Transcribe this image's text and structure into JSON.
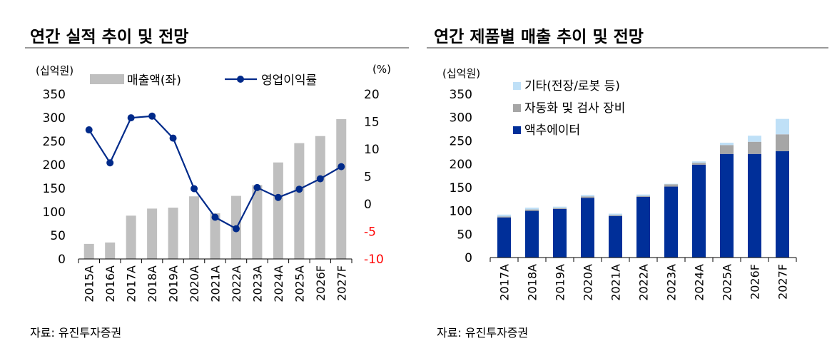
{
  "left": {
    "title": "연간 실적 추이 및 전망",
    "source": "자료: 유진투자증권",
    "unit_left": "(십억원)",
    "unit_right": "(%)",
    "legend_bar": "매출액(좌)",
    "legend_line": "영업이익률"
  },
  "right": {
    "title": "연간 제품별 매출 추이 및 전망",
    "source": "자료: 유진투자증권",
    "unit_left": "(십억원)",
    "legend": [
      "기타(전장/로봇 등)",
      "자동화 및 검사 장비",
      "액추에이터"
    ]
  },
  "colors": {
    "bar_gray": "#bfbfbf",
    "line_navy": "#002a8a",
    "actuator": "#002f99",
    "automation": "#a6a6a6",
    "other": "#bfe0f7",
    "negative_tick": "#ff0000"
  },
  "chart_data": [
    {
      "type": "bar+line",
      "title": "연간 실적 추이 및 전망",
      "categories": [
        "2015A",
        "2016A",
        "2017A",
        "2018A",
        "2019A",
        "2020A",
        "2021A",
        "2022A",
        "2023A",
        "2024A",
        "2025A",
        "2026F",
        "2027F"
      ],
      "series": [
        {
          "name": "매출액(좌)",
          "axis": "left",
          "kind": "bar",
          "values": [
            32,
            35,
            92,
            107,
            109,
            133,
            97,
            134,
            157,
            205,
            246,
            261,
            297
          ]
        },
        {
          "name": "영업이익률",
          "axis": "right",
          "kind": "line",
          "values": [
            13.5,
            7.5,
            15.7,
            16.0,
            12.0,
            2.8,
            -2.4,
            -4.5,
            3.0,
            1.2,
            2.7,
            4.6,
            6.8
          ]
        }
      ],
      "y_left": {
        "min": 0,
        "max": 350,
        "ticks": [
          "0",
          "50",
          "100",
          "150",
          "200",
          "250",
          "300",
          "350"
        ],
        "tick_values": [
          0,
          50,
          100,
          150,
          200,
          250,
          300,
          350
        ]
      },
      "y_right": {
        "min": -10,
        "max": 20,
        "ticks": [
          "-10",
          "-5",
          "0",
          "5",
          "10",
          "15",
          "20"
        ],
        "tick_values": [
          -10,
          -5,
          0,
          5,
          10,
          15,
          20
        ]
      }
    },
    {
      "type": "stacked-bar",
      "title": "연간 제품별 매출 추이 및 전망",
      "categories": [
        "2017A",
        "2018A",
        "2019A",
        "2020A",
        "2021A",
        "2022A",
        "2023A",
        "2024A",
        "2025A",
        "2026F",
        "2027F"
      ],
      "series": [
        {
          "name": "액추에이터",
          "values": [
            86,
            100,
            104,
            128,
            89,
            130,
            152,
            199,
            222,
            222,
            228
          ]
        },
        {
          "name": "자동화 및 검사 장비",
          "values": [
            2,
            3,
            2,
            3,
            2,
            2,
            5,
            4,
            19,
            26,
            36
          ]
        },
        {
          "name": "기타(전장/로봇 등)",
          "values": [
            4,
            4,
            3,
            3,
            3,
            3,
            1,
            3,
            5,
            13,
            33
          ]
        }
      ],
      "y": {
        "min": 0,
        "max": 350,
        "ticks": [
          "0",
          "50",
          "100",
          "150",
          "200",
          "250",
          "300",
          "350"
        ],
        "tick_values": [
          0,
          50,
          100,
          150,
          200,
          250,
          300,
          350
        ]
      }
    }
  ]
}
